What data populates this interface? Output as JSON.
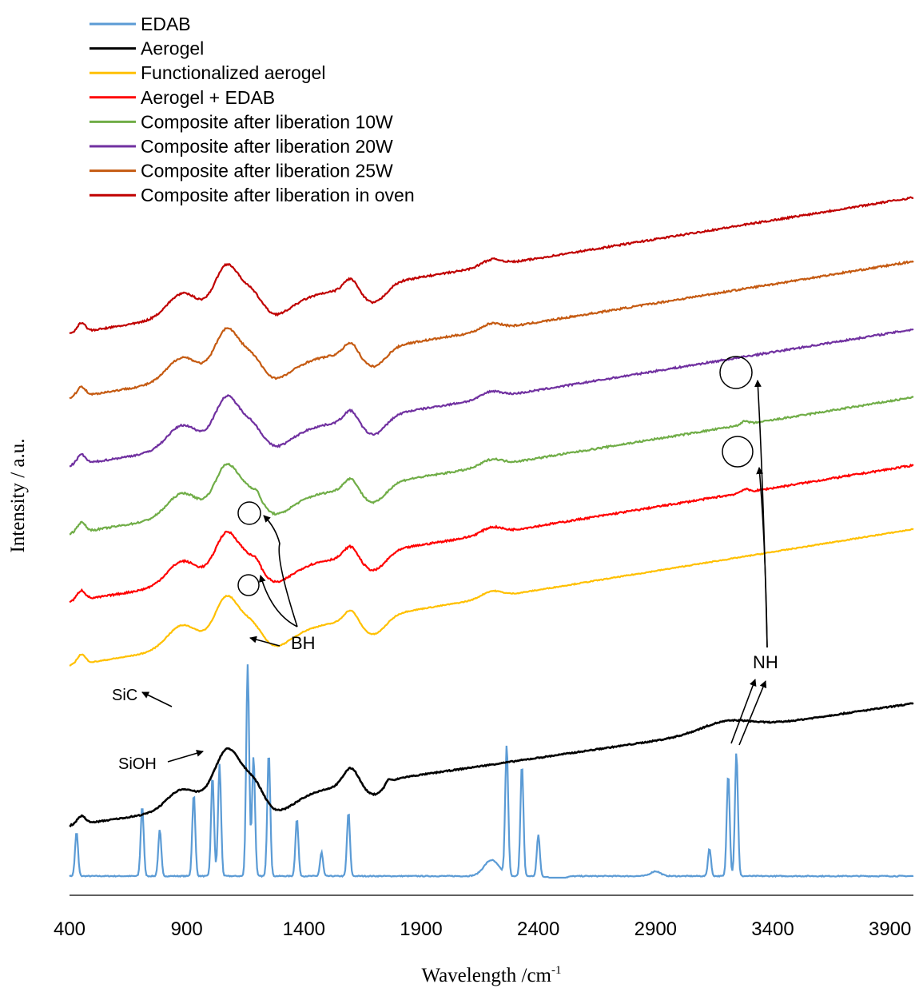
{
  "chart_data": {
    "type": "line",
    "xlabel": "Wavelength /cm",
    "xlabel_sup": "-1",
    "ylabel": "Intensity / a.u.",
    "xlim": [
      400,
      4000
    ],
    "x_ticks": [
      400,
      900,
      1400,
      1900,
      2400,
      2900,
      3400,
      3900
    ],
    "y_axis_values_shown": false,
    "grid": false,
    "legend_position": "top-left",
    "series": [
      {
        "name": "EDAB",
        "color": "#5b9bd5",
        "kind": "edab",
        "offset": 0
      },
      {
        "name": "Aerogel",
        "color": "#000000",
        "kind": "aerogel",
        "offset": 80
      },
      {
        "name": "Functionalized aerogel",
        "color": "#ffc000",
        "kind": "comp",
        "offset": 145,
        "smooth": 0.55
      },
      {
        "name": "Aerogel + EDAB",
        "color": "#ff0000",
        "kind": "comp",
        "offset": 225,
        "bh": true,
        "nh": true
      },
      {
        "name": "Composite after liberation 10W",
        "color": "#70ad47",
        "kind": "comp",
        "offset": 310,
        "bh": true,
        "nh": true
      },
      {
        "name": "Composite after liberation 20W",
        "color": "#7030a0",
        "kind": "comp",
        "offset": 395
      },
      {
        "name": "Composite after liberation 25W",
        "color": "#c55a11",
        "kind": "comp",
        "offset": 480
      },
      {
        "name": "Composite after liberation in oven",
        "color": "#c00000",
        "kind": "comp",
        "offset": 560
      }
    ],
    "edab_peaks": [
      {
        "x": 430,
        "h": 55
      },
      {
        "x": 710,
        "h": 88
      },
      {
        "x": 785,
        "h": 58
      },
      {
        "x": 930,
        "h": 103
      },
      {
        "x": 1010,
        "h": 125
      },
      {
        "x": 1040,
        "h": 140
      },
      {
        "x": 1160,
        "h": 265
      },
      {
        "x": 1185,
        "h": 150
      },
      {
        "x": 1250,
        "h": 155
      },
      {
        "x": 1370,
        "h": 72
      },
      {
        "x": 1475,
        "h": 30
      },
      {
        "x": 1590,
        "h": 80
      },
      {
        "x": 2265,
        "h": 162
      },
      {
        "x": 2330,
        "h": 140
      },
      {
        "x": 2400,
        "h": 52
      },
      {
        "x": 3130,
        "h": 35
      },
      {
        "x": 3210,
        "h": 128
      },
      {
        "x": 3245,
        "h": 155
      }
    ],
    "annotations": [
      {
        "label": "BH"
      },
      {
        "label": "NH"
      },
      {
        "label": "SiC"
      },
      {
        "label": "SiOH"
      }
    ]
  }
}
